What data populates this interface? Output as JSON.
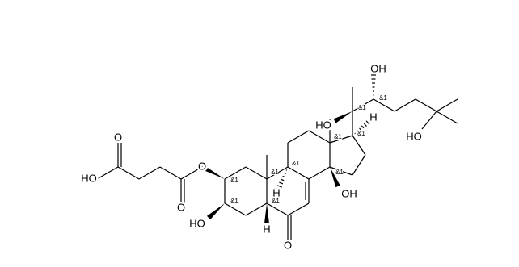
{
  "atom_labels": [
    "O",
    "HO",
    "O",
    "O",
    "HO",
    "H",
    "H",
    "OH",
    "O",
    "H",
    "HO",
    "OH",
    "HO"
  ],
  "stereo_labels": [
    "&1",
    "&1",
    "&1",
    "&1",
    "&1",
    "&1",
    "&1",
    "&1",
    "&1",
    "&1"
  ]
}
